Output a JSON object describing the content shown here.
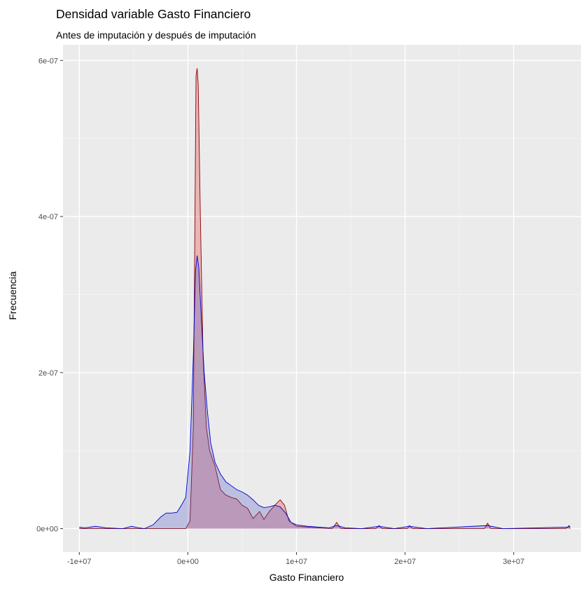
{
  "chart_data": {
    "type": "area",
    "title": "Densidad variable Gasto Financiero",
    "subtitle": "Antes de imputación y después de imputación",
    "xlabel": "Gasto Financiero",
    "ylabel": "Frecuencia",
    "xlim": [
      -11500000,
      36200000
    ],
    "ylim": [
      -3e-08,
      6.2e-07
    ],
    "x_ticks": [
      {
        "value": -10000000,
        "label": "-1e+07"
      },
      {
        "value": 0,
        "label": "0e+00"
      },
      {
        "value": 10000000,
        "label": "1e+07"
      },
      {
        "value": 20000000,
        "label": "2e+07"
      },
      {
        "value": 30000000,
        "label": "3e+07"
      }
    ],
    "y_ticks": [
      {
        "value": 0,
        "label": "0e+00"
      },
      {
        "value": 2e-07,
        "label": "2e-07"
      },
      {
        "value": 4e-07,
        "label": "4e-07"
      },
      {
        "value": 6e-07,
        "label": "6e-07"
      }
    ],
    "grid": true,
    "legend": "none",
    "colors": {
      "panel": "#EBEBEB",
      "grid_major": "#FFFFFF",
      "grid_minor": "#F5F5F5",
      "series_red_fill": "rgba(230,80,80,0.35)",
      "series_red_line": "#8B0000",
      "series_blue_fill": "rgba(80,90,200,0.30)",
      "series_blue_line": "#0000CD"
    },
    "series": [
      {
        "fill": "series_red_fill",
        "line": "series_red_line",
        "points": [
          [
            -10000000,
            0
          ],
          [
            -1000000,
            0
          ],
          [
            -200000,
            0
          ],
          [
            200000,
            1e-08
          ],
          [
            500000,
            1.3e-07
          ],
          [
            650000,
            4e-07
          ],
          [
            750000,
            5.8e-07
          ],
          [
            850000,
            5.9e-07
          ],
          [
            950000,
            5.7e-07
          ],
          [
            1150000,
            4e-07
          ],
          [
            1400000,
            2.2e-07
          ],
          [
            1700000,
            1.3e-07
          ],
          [
            2000000,
            1e-07
          ],
          [
            2500000,
            8e-08
          ],
          [
            3000000,
            5e-08
          ],
          [
            3500000,
            4.3e-08
          ],
          [
            4000000,
            4e-08
          ],
          [
            4500000,
            3.8e-08
          ],
          [
            5000000,
            3e-08
          ],
          [
            5500000,
            2.6e-08
          ],
          [
            6000000,
            1.3e-08
          ],
          [
            6600000,
            2.2e-08
          ],
          [
            7000000,
            1.2e-08
          ],
          [
            7500000,
            2.2e-08
          ],
          [
            8000000,
            3e-08
          ],
          [
            8500000,
            3.7e-08
          ],
          [
            8900000,
            3e-08
          ],
          [
            9300000,
            1e-08
          ],
          [
            10000000,
            3e-09
          ],
          [
            11000000,
            2e-09
          ],
          [
            12000000,
            1e-09
          ],
          [
            13300000,
            0
          ],
          [
            13700000,
            8e-09
          ],
          [
            14100000,
            0
          ],
          [
            17300000,
            0
          ],
          [
            17600000,
            4e-09
          ],
          [
            17900000,
            0
          ],
          [
            20200000,
            0
          ],
          [
            20400000,
            4e-09
          ],
          [
            20700000,
            0
          ],
          [
            27300000,
            0
          ],
          [
            27600000,
            7e-09
          ],
          [
            27900000,
            0
          ],
          [
            34800000,
            0
          ],
          [
            35100000,
            4e-09
          ],
          [
            35200000,
            0
          ]
        ]
      },
      {
        "fill": "series_blue_fill",
        "line": "series_blue_line",
        "points": [
          [
            -10000000,
            2e-09
          ],
          [
            -9500000,
            1e-09
          ],
          [
            -8500000,
            3e-09
          ],
          [
            -7500000,
            1e-09
          ],
          [
            -6000000,
            0
          ],
          [
            -5200000,
            3e-09
          ],
          [
            -4500000,
            1e-09
          ],
          [
            -4000000,
            0
          ],
          [
            -3200000,
            5e-09
          ],
          [
            -2500000,
            1.5e-08
          ],
          [
            -2000000,
            2e-08
          ],
          [
            -1500000,
            2e-08
          ],
          [
            -1000000,
            2.1e-08
          ],
          [
            -600000,
            3e-08
          ],
          [
            -200000,
            4e-08
          ],
          [
            200000,
            1e-07
          ],
          [
            500000,
            2.2e-07
          ],
          [
            700000,
            3.3e-07
          ],
          [
            850000,
            3.5e-07
          ],
          [
            1000000,
            3.35e-07
          ],
          [
            1200000,
            2.8e-07
          ],
          [
            1500000,
            2e-07
          ],
          [
            1800000,
            1.5e-07
          ],
          [
            2100000,
            1.1e-07
          ],
          [
            2500000,
            8.5e-08
          ],
          [
            3000000,
            7e-08
          ],
          [
            3500000,
            6e-08
          ],
          [
            4000000,
            5.5e-08
          ],
          [
            4500000,
            5e-08
          ],
          [
            5000000,
            4.7e-08
          ],
          [
            5500000,
            4.3e-08
          ],
          [
            6000000,
            3.7e-08
          ],
          [
            6500000,
            3e-08
          ],
          [
            7000000,
            2.7e-08
          ],
          [
            7500000,
            2.8e-08
          ],
          [
            8000000,
            3e-08
          ],
          [
            8500000,
            2.8e-08
          ],
          [
            9000000,
            2e-08
          ],
          [
            9500000,
            8e-09
          ],
          [
            10000000,
            5e-09
          ],
          [
            11000000,
            3e-09
          ],
          [
            12000000,
            2e-09
          ],
          [
            13000000,
            1e-09
          ],
          [
            13700000,
            4e-09
          ],
          [
            14500000,
            1e-09
          ],
          [
            16000000,
            0
          ],
          [
            17600000,
            3e-09
          ],
          [
            19000000,
            0
          ],
          [
            20400000,
            3e-09
          ],
          [
            22000000,
            0
          ],
          [
            27600000,
            4e-09
          ],
          [
            29000000,
            0
          ],
          [
            35000000,
            2e-09
          ],
          [
            35200000,
            3e-09
          ]
        ]
      }
    ]
  }
}
